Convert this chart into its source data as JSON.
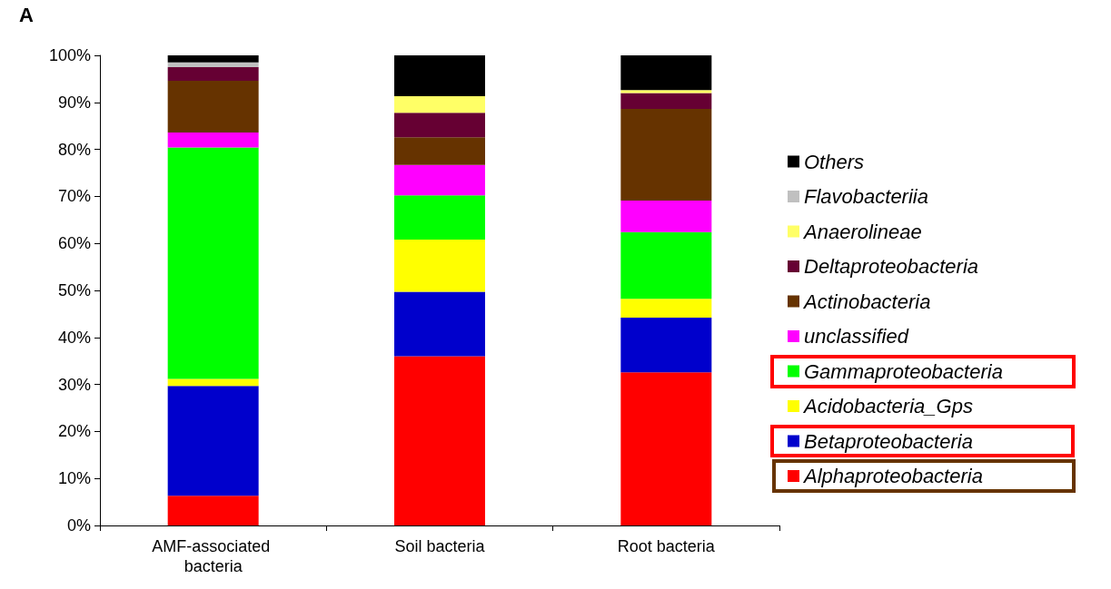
{
  "chart_data": {
    "type": "bar",
    "title": "A",
    "stacked": true,
    "categories": [
      "AMF-associated bacteria",
      "Soil bacteria",
      "Root bacteria"
    ],
    "series": [
      {
        "name": "Alphaproteobacteria",
        "color": "#ff0000",
        "values": [
          6.3,
          36,
          32.6
        ]
      },
      {
        "name": "Betaproteobacteria",
        "color": "#0000cc",
        "values": [
          23.4,
          13.7,
          11.6
        ]
      },
      {
        "name": "Acidobacteria_Gps",
        "color": "#ffff00",
        "values": [
          1.5,
          11.1,
          4
        ]
      },
      {
        "name": "Gammaproteobacteria",
        "color": "#00ff00",
        "values": [
          49.2,
          9.4,
          14.2
        ]
      },
      {
        "name": "unclassified",
        "color": "#ff00ff",
        "values": [
          3.2,
          6.5,
          6.7
        ]
      },
      {
        "name": "Actinobacteria",
        "color": "#663300",
        "values": [
          11,
          5.9,
          19.5
        ]
      },
      {
        "name": "Deltaproteobacteria",
        "color": "#660033",
        "values": [
          2.9,
          5.2,
          3.4
        ]
      },
      {
        "name": "Anaerolineae",
        "color": "#ffff66",
        "values": [
          0,
          3.5,
          0.6
        ]
      },
      {
        "name": "Flavobacteriia",
        "color": "#c0c0c0",
        "values": [
          1,
          0,
          0
        ]
      },
      {
        "name": "Others",
        "color": "#000000",
        "values": [
          1.5,
          8.7,
          7.4
        ]
      }
    ],
    "ylim": [
      0,
      100
    ],
    "yticks": [
      {
        "value": 0,
        "label": "0%"
      },
      {
        "value": 10,
        "label": "10%"
      },
      {
        "value": 20,
        "label": "20%"
      },
      {
        "value": 30,
        "label": "30%"
      },
      {
        "value": 40,
        "label": "40%"
      },
      {
        "value": 50,
        "label": "50%"
      },
      {
        "value": 60,
        "label": "60%"
      },
      {
        "value": 70,
        "label": "70%"
      },
      {
        "value": 80,
        "label": "80%"
      },
      {
        "value": 90,
        "label": "90%"
      },
      {
        "value": 100,
        "label": "100%"
      }
    ],
    "grid": false,
    "legend": "right"
  }
}
